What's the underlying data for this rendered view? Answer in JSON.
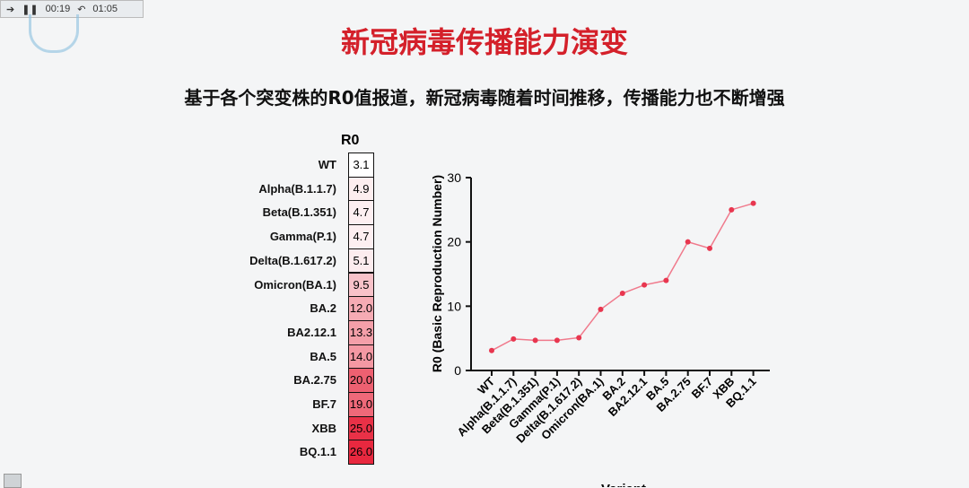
{
  "player": {
    "elapsed": "00:19",
    "total": "01:05"
  },
  "title": "新冠病毒传播能力演变",
  "subtitle": "基于各个突变株的R0值报道，新冠病毒随着时间推移，传播能力也不断增强",
  "table": {
    "header": "R0",
    "colors": {
      "low": "#ffffff",
      "high": "#e8283f"
    }
  },
  "chart_data": {
    "type": "line",
    "categories": [
      "WT",
      "Alpha(B.1.1.7)",
      "Beta(B.1.351)",
      "Gamma(P.1)",
      "Delta(B.1.617.2)",
      "Omicron(BA.1)",
      "BA.2",
      "BA2.12.1",
      "BA.5",
      "BA.2.75",
      "BF.7",
      "XBB",
      "BQ.1.1"
    ],
    "values": [
      3.1,
      4.9,
      4.7,
      4.7,
      5.1,
      9.5,
      12.0,
      13.3,
      14.0,
      20.0,
      19.0,
      25.0,
      26.0
    ],
    "value_labels": [
      "3.1",
      "4.9",
      "4.7",
      "4.7",
      "5.1",
      "9.5",
      "12.0",
      "13.3",
      "14.0",
      "20.0",
      "19.0",
      "25.0",
      "26.0"
    ],
    "ylabel": "R0 (Basic Reproduction Number)",
    "xlabel": "Variant",
    "ylim": [
      0,
      30
    ],
    "yticks": [
      "0",
      "10",
      "20",
      "30"
    ],
    "line_color": "#f07a8c",
    "marker_color": "#e8364f",
    "grid": false
  }
}
